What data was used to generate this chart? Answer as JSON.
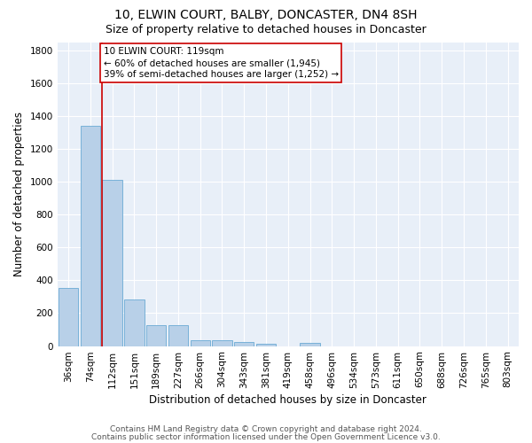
{
  "title": "10, ELWIN COURT, BALBY, DONCASTER, DN4 8SH",
  "subtitle": "Size of property relative to detached houses in Doncaster",
  "xlabel": "Distribution of detached houses by size in Doncaster",
  "ylabel": "Number of detached properties",
  "bar_color": "#b8d0e8",
  "bar_edge_color": "#6aaad4",
  "background_color": "#e8eff8",
  "grid_color": "#ffffff",
  "categories": [
    "36sqm",
    "74sqm",
    "112sqm",
    "151sqm",
    "189sqm",
    "227sqm",
    "266sqm",
    "304sqm",
    "343sqm",
    "381sqm",
    "419sqm",
    "458sqm",
    "496sqm",
    "534sqm",
    "573sqm",
    "611sqm",
    "650sqm",
    "688sqm",
    "726sqm",
    "765sqm",
    "803sqm"
  ],
  "values": [
    355,
    1340,
    1010,
    285,
    125,
    125,
    35,
    35,
    25,
    15,
    0,
    20,
    0,
    0,
    0,
    0,
    0,
    0,
    0,
    0,
    0
  ],
  "ylim": [
    0,
    1850
  ],
  "yticks": [
    0,
    200,
    400,
    600,
    800,
    1000,
    1200,
    1400,
    1600,
    1800
  ],
  "property_line_color": "#cc0000",
  "annotation_text": "10 ELWIN COURT: 119sqm\n← 60% of detached houses are smaller (1,945)\n39% of semi-detached houses are larger (1,252) →",
  "annotation_box_color": "#ffffff",
  "annotation_box_edge": "#cc0000",
  "footer_line1": "Contains HM Land Registry data © Crown copyright and database right 2024.",
  "footer_line2": "Contains public sector information licensed under the Open Government Licence v3.0.",
  "title_fontsize": 10,
  "subtitle_fontsize": 9,
  "xlabel_fontsize": 8.5,
  "ylabel_fontsize": 8.5,
  "tick_fontsize": 7.5,
  "annotation_fontsize": 7.5,
  "footer_fontsize": 6.5
}
